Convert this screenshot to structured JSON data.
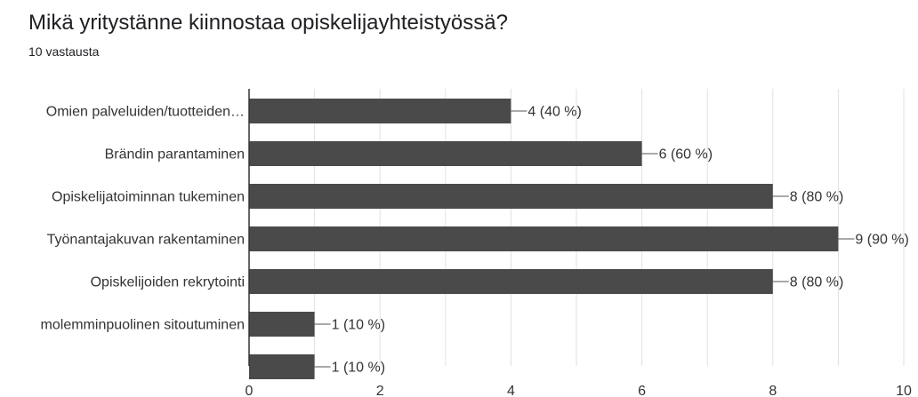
{
  "header": {
    "question": "Mikä yritystänne kiinnostaa opiskelijayhteistyössä?",
    "response_count": "10 vastausta"
  },
  "chart_data": {
    "type": "bar",
    "orientation": "horizontal",
    "categories": [
      "Omien palveluiden/tuotteiden…",
      "Brändin parantaminen",
      "Opiskelijatoiminnan tukeminen",
      "Työnantajakuvan rakentaminen",
      "Opiskelijoiden rekrytointi",
      "molemminpuolinen sitoutuminen",
      ""
    ],
    "values": [
      4,
      6,
      8,
      9,
      8,
      1,
      1
    ],
    "data_labels": [
      "4 (40 %)",
      "6 (60 %)",
      "8 (80 %)",
      "9 (90 %)",
      "8 (80 %)",
      "1 (10 %)",
      "1 (10 %)"
    ],
    "xlim": [
      0,
      10
    ],
    "xticks": [
      0,
      2,
      4,
      6,
      8,
      10
    ],
    "grid": true,
    "bar_color": "#4a4a4a",
    "grid_color": "#e0e0e0",
    "axis_color": "#333333"
  }
}
